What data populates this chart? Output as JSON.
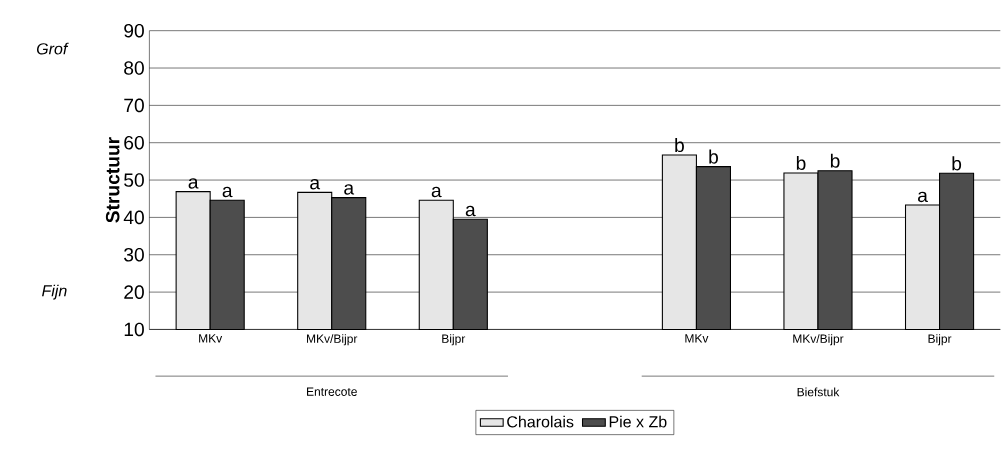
{
  "chart_data": {
    "type": "bar",
    "ylabel": "Structuur",
    "categories": [
      "MKv",
      "MKv/Bijpr",
      "Bijpr",
      null,
      "MKv",
      "MKv/Bijpr",
      "Bijpr"
    ],
    "series": [
      {
        "name": "Charolais",
        "color": "#e6e6e6",
        "values": [
          46.9,
          46.7,
          44.6,
          null,
          56.7,
          51.9,
          43.3
        ],
        "value_labels": [
          "a",
          "a",
          "a",
          null,
          "b",
          "b",
          "a"
        ]
      },
      {
        "name": "Pie x Zb",
        "color": "#4d4d4d",
        "values": [
          44.6,
          45.3,
          39.5,
          null,
          53.6,
          52.5,
          51.8
        ],
        "value_labels": [
          "a",
          "a",
          "a",
          null,
          "b",
          "b",
          "b"
        ]
      }
    ],
    "annotations": [
      "Grof",
      "Fijn",
      "Entrecote",
      "Biefstuk"
    ],
    "ylim": [
      10,
      90
    ],
    "yticks": [
      10,
      20,
      30,
      40,
      50,
      60,
      70,
      80,
      90
    ],
    "grid": "y",
    "legend": "bottom"
  }
}
